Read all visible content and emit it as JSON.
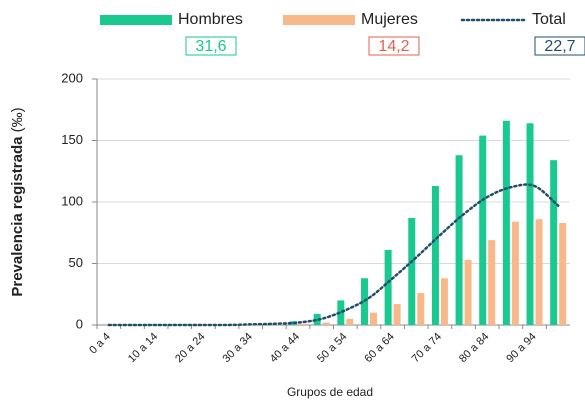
{
  "chart_data": {
    "type": "bar",
    "categories": [
      "0 a 4",
      null,
      "10 a 14",
      null,
      "20 a 24",
      null,
      "30 a 34",
      null,
      "40 a 44",
      null,
      "50 a 54",
      null,
      "60 a 64",
      null,
      "70 a 74",
      null,
      "80 a 84",
      null,
      "90 a 94",
      null
    ],
    "series": [
      {
        "name": "Hombres",
        "color": "#19c990",
        "summary": {
          "value": 31.6,
          "label": "31,6"
        },
        "summary_color": "#19c990",
        "values": [
          0,
          0,
          0,
          0,
          0,
          0,
          0.3,
          0.6,
          3,
          9,
          20,
          38,
          61,
          87,
          113,
          138,
          154,
          166,
          164,
          134
        ]
      },
      {
        "name": "Mujeres",
        "color": "#f8b98a",
        "summary": {
          "value": 14.2,
          "label": "14,2"
        },
        "summary_color": "#e5604a",
        "values": [
          0,
          0,
          0,
          0,
          0,
          0,
          0.2,
          0.4,
          1,
          2,
          5,
          10,
          17,
          26,
          38,
          53,
          69,
          84,
          86,
          83
        ]
      },
      {
        "name": "Total",
        "type": "line",
        "color": "#1f4e6b",
        "summary": {
          "value": 22.7,
          "label": "22,7"
        },
        "summary_color": "#1f4e6b",
        "values": [
          0,
          0,
          0,
          0,
          0,
          0,
          0.5,
          1,
          2,
          5,
          12,
          22,
          38,
          55,
          73,
          90,
          104,
          112,
          113,
          97
        ]
      }
    ],
    "x_label": "Grupos de edad",
    "y_label": "Prevalencia registrada",
    "y_label_unit": "(‰)",
    "ylim": [
      0,
      200
    ],
    "yticks": [
      0,
      50,
      100,
      150,
      200
    ],
    "grid": true,
    "legend": "top"
  }
}
